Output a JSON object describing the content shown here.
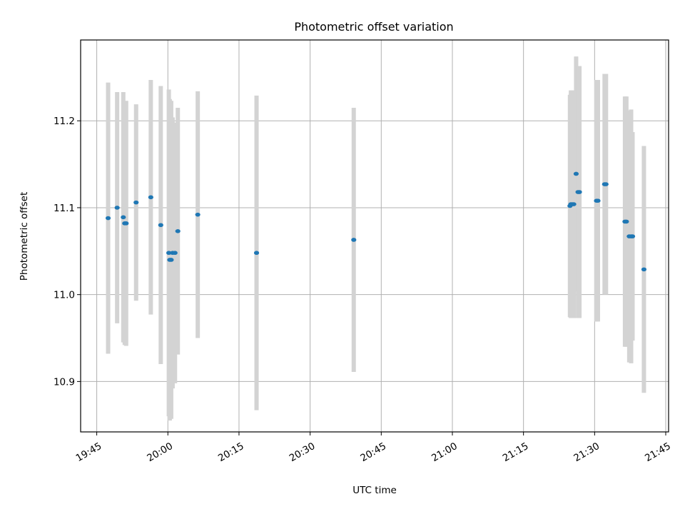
{
  "chart_data": {
    "type": "scatter",
    "title": "Photometric offset variation",
    "xlabel": "UTC time",
    "ylabel": "Photometric offset",
    "x_ticks": [
      "19:45",
      "20:00",
      "20:15",
      "20:30",
      "20:45",
      "21:00",
      "21:15",
      "21:30",
      "21:45"
    ],
    "y_ticks": [
      "10.9",
      "11.0",
      "11.1",
      "11.2"
    ],
    "xlim": [
      "19:41:36",
      "21:45:36"
    ],
    "ylim": [
      10.842,
      11.293
    ],
    "grid": true,
    "marker_color": "#1f77b4",
    "errorbar_color": "#d3d3d3",
    "points": [
      {
        "t": "19:47:24",
        "y": 11.088,
        "err": 0.156
      },
      {
        "t": "19:49:18",
        "y": 11.1,
        "err": 0.133
      },
      {
        "t": "19:50:36",
        "y": 11.089,
        "err": 0.144
      },
      {
        "t": "19:50:54",
        "y": 11.082,
        "err": 0.14
      },
      {
        "t": "19:51:12",
        "y": 11.082,
        "err": 0.141
      },
      {
        "t": "19:53:18",
        "y": 11.106,
        "err": 0.113
      },
      {
        "t": "19:56:24",
        "y": 11.112,
        "err": 0.135
      },
      {
        "t": "19:58:30",
        "y": 11.08,
        "err": 0.16
      },
      {
        "t": "20:00:12",
        "y": 11.048,
        "err": 0.188
      },
      {
        "t": "20:00:24",
        "y": 11.04,
        "err": 0.185
      },
      {
        "t": "20:00:42",
        "y": 11.04,
        "err": 0.183
      },
      {
        "t": "20:01:00",
        "y": 11.048,
        "err": 0.156
      },
      {
        "t": "20:01:30",
        "y": 11.048,
        "err": 0.15
      },
      {
        "t": "20:02:06",
        "y": 11.073,
        "err": 0.142
      },
      {
        "t": "20:06:18",
        "y": 11.092,
        "err": 0.142
      },
      {
        "t": "20:18:42",
        "y": 11.048,
        "err": 0.181
      },
      {
        "t": "20:39:12",
        "y": 11.063,
        "err": 0.152
      },
      {
        "t": "21:24:48",
        "y": 11.102,
        "err": 0.128
      },
      {
        "t": "21:25:00",
        "y": 11.104,
        "err": 0.131
      },
      {
        "t": "21:25:18",
        "y": 11.104,
        "err": 0.131
      },
      {
        "t": "21:25:36",
        "y": 11.104,
        "err": 0.131
      },
      {
        "t": "21:26:06",
        "y": 11.139,
        "err": 0.135
      },
      {
        "t": "21:26:30",
        "y": 11.118,
        "err": 0.145
      },
      {
        "t": "21:26:48",
        "y": 11.118,
        "err": 0.145
      },
      {
        "t": "21:30:24",
        "y": 11.108,
        "err": 0.139
      },
      {
        "t": "21:30:42",
        "y": 11.108,
        "err": 0.139
      },
      {
        "t": "21:32:06",
        "y": 11.127,
        "err": 0.127
      },
      {
        "t": "21:32:24",
        "y": 11.127,
        "err": 0.127
      },
      {
        "t": "21:36:24",
        "y": 11.084,
        "err": 0.144
      },
      {
        "t": "21:36:42",
        "y": 11.084,
        "err": 0.144
      },
      {
        "t": "21:37:18",
        "y": 11.067,
        "err": 0.145
      },
      {
        "t": "21:37:42",
        "y": 11.067,
        "err": 0.146
      },
      {
        "t": "21:38:00",
        "y": 11.067,
        "err": 0.12
      },
      {
        "t": "21:40:24",
        "y": 11.029,
        "err": 0.142
      }
    ]
  }
}
